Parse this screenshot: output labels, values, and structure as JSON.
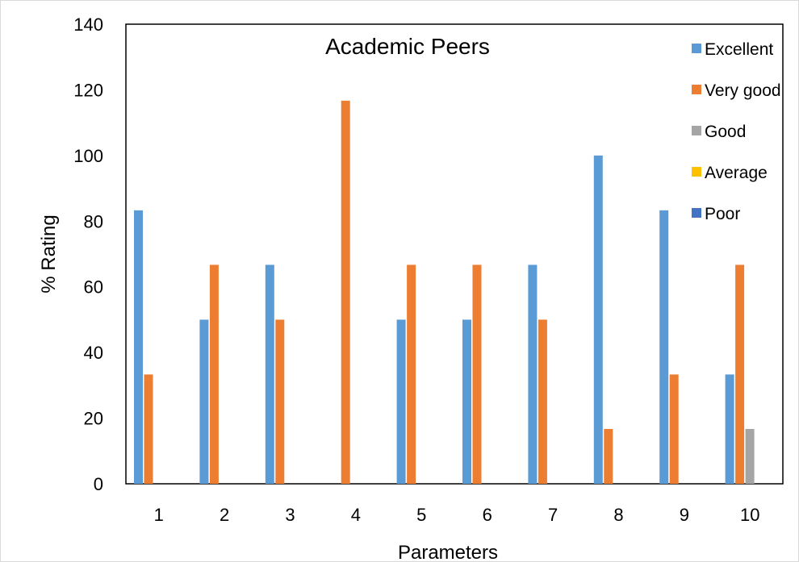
{
  "chart_data": {
    "type": "bar",
    "title": "Academic Peers",
    "xlabel": "Parameters",
    "ylabel": "% Rating",
    "categories": [
      "1",
      "2",
      "3",
      "4",
      "5",
      "6",
      "7",
      "8",
      "9",
      "10"
    ],
    "ylim": [
      0,
      140
    ],
    "yticks": [
      0,
      20,
      40,
      60,
      80,
      100,
      120,
      140
    ],
    "grid": false,
    "legend_position": "top-right",
    "series": [
      {
        "name": "Excellent",
        "color": "#5B9BD5",
        "values": [
          83.3,
          50,
          66.7,
          0,
          50,
          50,
          66.7,
          100,
          83.3,
          33.3
        ]
      },
      {
        "name": "Very good",
        "color": "#ED7D31",
        "values": [
          33.3,
          66.7,
          50,
          116.7,
          66.7,
          66.7,
          50,
          16.7,
          33.3,
          66.7
        ]
      },
      {
        "name": "Good",
        "color": "#A5A5A5",
        "values": [
          0,
          0,
          0,
          0,
          0,
          0,
          0,
          0,
          0,
          16.7
        ]
      },
      {
        "name": "Average",
        "color": "#FFC000",
        "values": [
          0,
          0,
          0,
          0,
          0,
          0,
          0,
          0,
          0,
          0
        ]
      },
      {
        "name": "Poor",
        "color": "#4472C4",
        "values": [
          0,
          0,
          0,
          0,
          0,
          0,
          0,
          0,
          0,
          0
        ]
      }
    ]
  }
}
